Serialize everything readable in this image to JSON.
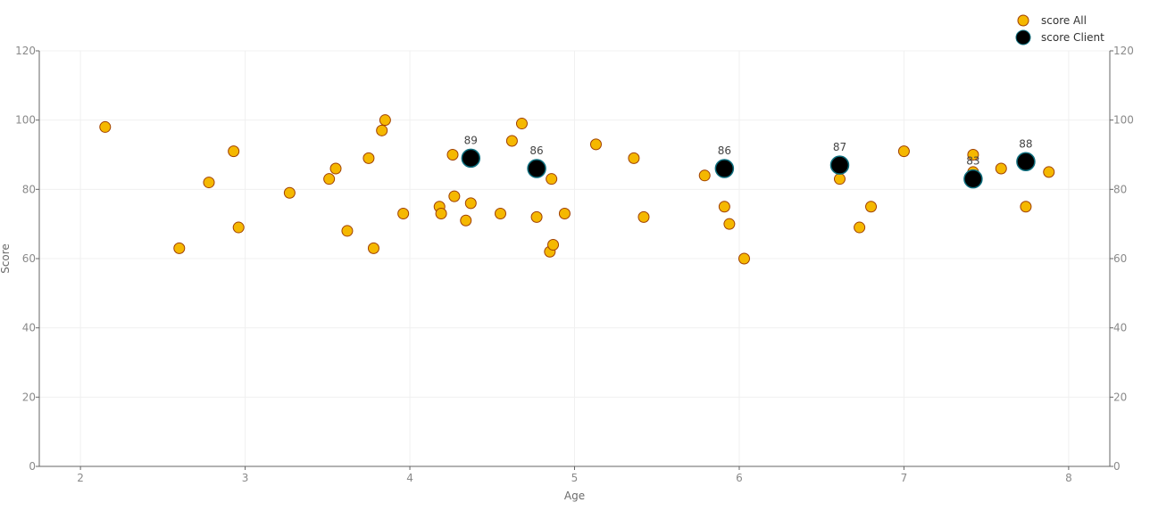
{
  "chart_data": {
    "type": "scatter",
    "title": "",
    "xlabel": "Age",
    "ylabel": "Score",
    "xlim": [
      1.75,
      8.25
    ],
    "ylim": [
      0,
      120
    ],
    "x_ticks": [
      2,
      3,
      4,
      5,
      6,
      7,
      8
    ],
    "y_ticks": [
      0,
      20,
      40,
      60,
      80,
      100,
      120
    ],
    "grid": true,
    "right_axis": true,
    "legend_position": "top-right",
    "series": [
      {
        "name": "score All",
        "color": "#f5b800",
        "stroke": "#a04000",
        "points": [
          {
            "x": 2.15,
            "y": 98
          },
          {
            "x": 2.6,
            "y": 63
          },
          {
            "x": 2.78,
            "y": 82
          },
          {
            "x": 2.93,
            "y": 91
          },
          {
            "x": 2.96,
            "y": 69
          },
          {
            "x": 3.27,
            "y": 79
          },
          {
            "x": 3.51,
            "y": 83
          },
          {
            "x": 3.55,
            "y": 86
          },
          {
            "x": 3.62,
            "y": 68
          },
          {
            "x": 3.75,
            "y": 89
          },
          {
            "x": 3.78,
            "y": 63
          },
          {
            "x": 3.83,
            "y": 97
          },
          {
            "x": 3.85,
            "y": 100
          },
          {
            "x": 3.96,
            "y": 73
          },
          {
            "x": 4.18,
            "y": 75
          },
          {
            "x": 4.19,
            "y": 73
          },
          {
            "x": 4.26,
            "y": 90
          },
          {
            "x": 4.27,
            "y": 78
          },
          {
            "x": 4.34,
            "y": 71
          },
          {
            "x": 4.37,
            "y": 76
          },
          {
            "x": 4.55,
            "y": 73
          },
          {
            "x": 4.62,
            "y": 94
          },
          {
            "x": 4.68,
            "y": 99
          },
          {
            "x": 4.77,
            "y": 72
          },
          {
            "x": 4.85,
            "y": 62
          },
          {
            "x": 4.86,
            "y": 83
          },
          {
            "x": 4.87,
            "y": 64
          },
          {
            "x": 4.94,
            "y": 73
          },
          {
            "x": 5.13,
            "y": 93
          },
          {
            "x": 5.36,
            "y": 89
          },
          {
            "x": 5.42,
            "y": 72
          },
          {
            "x": 5.79,
            "y": 84
          },
          {
            "x": 5.91,
            "y": 75
          },
          {
            "x": 5.94,
            "y": 70
          },
          {
            "x": 6.03,
            "y": 60
          },
          {
            "x": 6.61,
            "y": 83
          },
          {
            "x": 6.73,
            "y": 69
          },
          {
            "x": 6.8,
            "y": 75
          },
          {
            "x": 7.0,
            "y": 91
          },
          {
            "x": 7.42,
            "y": 90
          },
          {
            "x": 7.42,
            "y": 85
          },
          {
            "x": 7.59,
            "y": 86
          },
          {
            "x": 7.74,
            "y": 75
          },
          {
            "x": 7.88,
            "y": 85
          }
        ]
      },
      {
        "name": "score Client",
        "color": "#000000",
        "stroke": "#0e6e7e",
        "points": [
          {
            "x": 4.37,
            "y": 89,
            "label": "89"
          },
          {
            "x": 4.77,
            "y": 86,
            "label": "86"
          },
          {
            "x": 5.91,
            "y": 86,
            "label": "86"
          },
          {
            "x": 6.61,
            "y": 87,
            "label": "87"
          },
          {
            "x": 7.42,
            "y": 83,
            "label": "83"
          },
          {
            "x": 7.74,
            "y": 88,
            "label": "88"
          }
        ]
      }
    ]
  }
}
